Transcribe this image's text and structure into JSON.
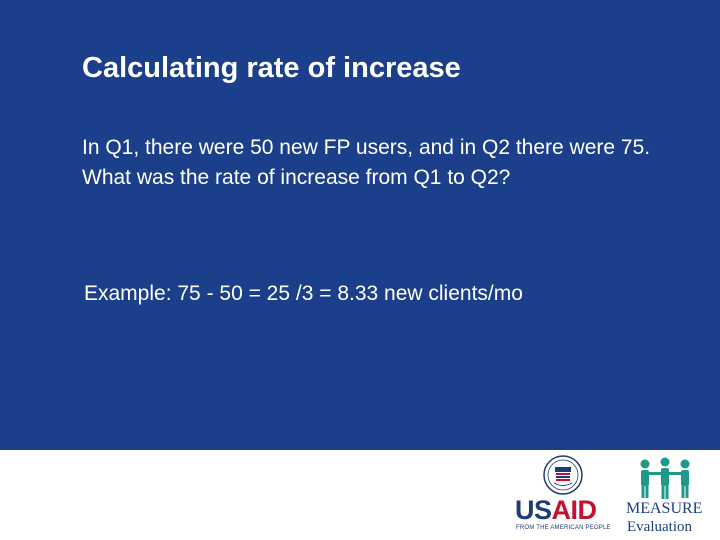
{
  "slide": {
    "title": "Calculating rate of increase",
    "question": "In Q1, there were 50 new FP users, and in Q2 there were 75. What was the rate of increase from Q1 to Q2?",
    "example": "Example: 75 - 50 = 25 /3 = 8.33 new clients/mo"
  },
  "footer": {
    "usaid_logo": {
      "wordmark_us": "US",
      "wordmark_aid": "AID",
      "tagline": "FROM THE AMERICAN PEOPLE"
    },
    "measure_logo": {
      "name": "MEASURE",
      "sub": "Evaluation"
    }
  },
  "colors": {
    "background": "#1b3f8b",
    "text": "#ffffff",
    "usaid_blue": "#1f3b7a",
    "usaid_red": "#c8102e",
    "measure_teal": "#1f9a8a"
  },
  "icons": {
    "usaid_seal": "usaid-seal-icon",
    "measure_figures": "measure-people-icon"
  }
}
